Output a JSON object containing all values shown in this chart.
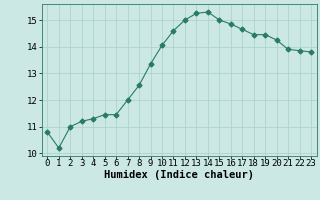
{
  "x": [
    0,
    1,
    2,
    3,
    4,
    5,
    6,
    7,
    8,
    9,
    10,
    11,
    12,
    13,
    14,
    15,
    16,
    17,
    18,
    19,
    20,
    21,
    22,
    23
  ],
  "y": [
    10.8,
    10.2,
    11.0,
    11.2,
    11.3,
    11.45,
    11.45,
    12.0,
    12.55,
    13.35,
    14.05,
    14.6,
    15.0,
    15.25,
    15.3,
    15.0,
    14.85,
    14.65,
    14.45,
    14.45,
    14.25,
    13.9,
    13.85,
    13.8
  ],
  "line_color": "#2a7a6a",
  "marker": "D",
  "marker_size": 2.5,
  "bg_color": "#cce8e4",
  "grid_color": "#aacfc9",
  "xlabel": "Humidex (Indice chaleur)",
  "xlabel_fontsize": 7.5,
  "tick_fontsize": 6.5,
  "ylim": [
    9.9,
    15.6
  ],
  "xlim": [
    -0.5,
    23.5
  ],
  "yticks": [
    10,
    11,
    12,
    13,
    14,
    15
  ],
  "xticks": [
    0,
    1,
    2,
    3,
    4,
    5,
    6,
    7,
    8,
    9,
    10,
    11,
    12,
    13,
    14,
    15,
    16,
    17,
    18,
    19,
    20,
    21,
    22,
    23
  ]
}
